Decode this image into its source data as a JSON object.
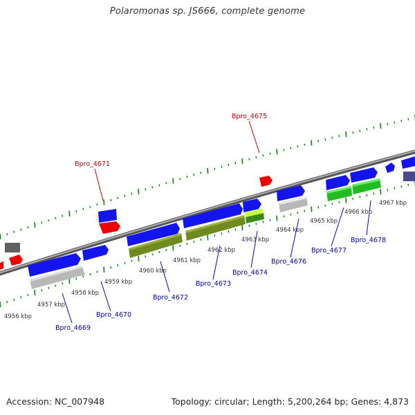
{
  "title": "Polaromonas sp. JS666, complete genome",
  "footer": {
    "accession": "Accession: NC_007948",
    "summary": "Topology: circular; Length: 5,200,264 bp; Genes: 4,873"
  },
  "colors": {
    "forward_tick": "#1a7a1a",
    "backbone": "#8a8a8a",
    "forward_gene": "#1414ee",
    "label_red": "#cc0000",
    "label_blue": "#0000aa"
  },
  "kbp_labels": [
    "4956 kbp",
    "4957 kbp",
    "4958 kbp",
    "4959 kbp",
    "4960 kbp",
    "4961 kbp",
    "4962 kbp",
    "4963 kbp",
    "4964 kbp",
    "4965 kbp",
    "4966 kbp",
    "4967 kbp"
  ],
  "gene_labels_top": [
    "Bpro_4671",
    "Bpro_4675"
  ],
  "gene_labels_bottom": [
    "Bpro_4669",
    "Bpro_4670",
    "Bpro_4672",
    "Bpro_4673",
    "Bpro_4674",
    "Bpro_4676",
    "Bpro_4677",
    "Bpro_4678"
  ]
}
